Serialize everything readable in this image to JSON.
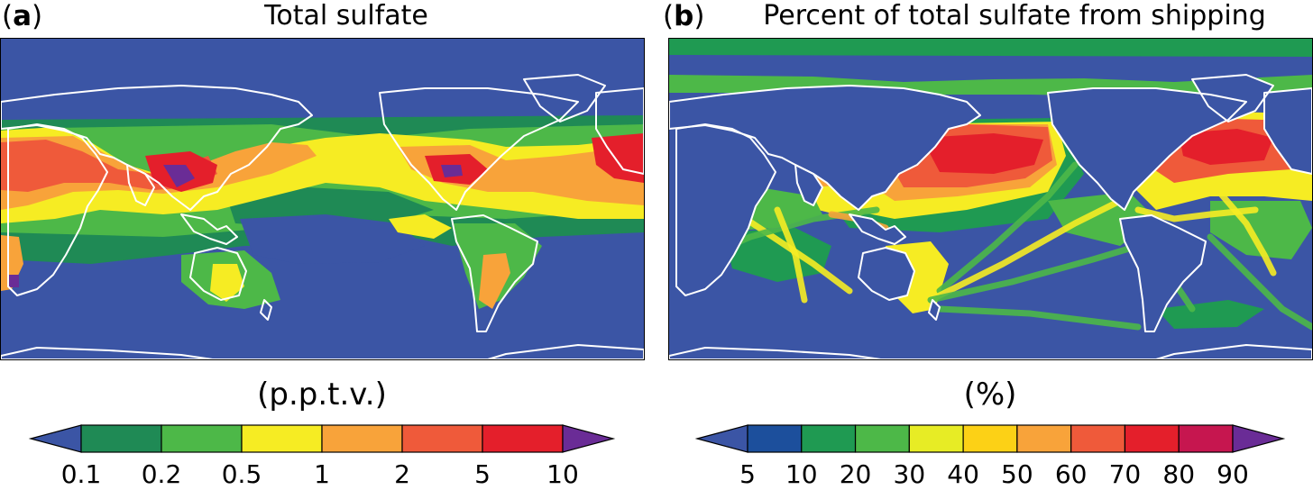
{
  "panels": [
    {
      "letter": "a",
      "title": "Total sulfate",
      "units": "(p.p.t.v.)",
      "colorbar": {
        "ticks": [
          "0.1",
          "0.2",
          "0.5",
          "1",
          "2",
          "5",
          "10"
        ],
        "under_color": "#3b55a5",
        "over_color": "#6a2c96",
        "colors": [
          "#1f8a55",
          "#4db848",
          "#f6ec23",
          "#f8a33a",
          "#ef5a3a",
          "#e41f2b"
        ]
      }
    },
    {
      "letter": "b",
      "title": "Percent of total sulfate from shipping",
      "units": "(%)",
      "colorbar": {
        "ticks": [
          "5",
          "10",
          "20",
          "30",
          "40",
          "50",
          "60",
          "70",
          "80",
          "90"
        ],
        "under_color": "#3b55a5",
        "over_color": "#6a2c96",
        "colors": [
          "#1c4f9c",
          "#1f9a52",
          "#4db848",
          "#e7ec25",
          "#fcd116",
          "#f8a33a",
          "#ef5a3a",
          "#e41f2b",
          "#c6164f"
        ]
      }
    }
  ],
  "map_colors": {
    "ocean": "#3b55a5",
    "coastline": "#ffffff"
  }
}
